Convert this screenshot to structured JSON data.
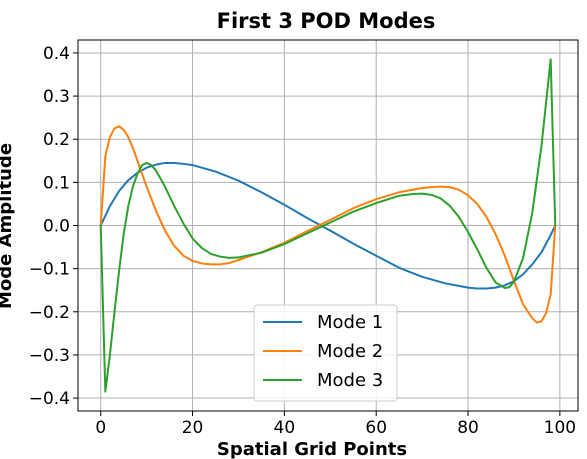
{
  "chart_data": {
    "type": "line",
    "title": "First 3 POD Modes",
    "xlabel": "Spatial Grid Points",
    "ylabel": "Mode Amplitude",
    "xlim": [
      -4.95,
      103.95
    ],
    "ylim": [
      -0.43,
      0.43
    ],
    "xticks": [
      0,
      20,
      40,
      60,
      80,
      100
    ],
    "yticks": [
      -0.4,
      -0.3,
      -0.2,
      -0.1,
      0.0,
      0.1,
      0.2,
      0.3,
      0.4
    ],
    "ytick_labels": [
      "−0.4",
      "−0.3",
      "−0.2",
      "−0.1",
      "0.0",
      "0.1",
      "0.2",
      "0.3",
      "0.4"
    ],
    "grid": true,
    "legend_position": "lower center",
    "series": [
      {
        "name": "Mode 1",
        "color": "#1f77b4",
        "x": [
          0,
          2,
          4,
          6,
          8,
          10,
          12,
          14,
          16,
          18,
          20,
          25,
          30,
          35,
          40,
          45,
          50,
          55,
          60,
          65,
          70,
          75,
          80,
          82,
          84,
          86,
          88,
          90,
          92,
          94,
          96,
          98,
          99
        ],
        "y": [
          0.0,
          0.045,
          0.08,
          0.105,
          0.122,
          0.134,
          0.141,
          0.145,
          0.145,
          0.143,
          0.14,
          0.125,
          0.104,
          0.077,
          0.048,
          0.017,
          -0.012,
          -0.042,
          -0.07,
          -0.098,
          -0.119,
          -0.134,
          -0.144,
          -0.146,
          -0.146,
          -0.144,
          -0.139,
          -0.129,
          -0.113,
          -0.09,
          -0.062,
          -0.022,
          0.0
        ]
      },
      {
        "name": "Mode 2",
        "color": "#ff7f0e",
        "x": [
          0,
          1,
          2,
          3,
          4,
          5,
          6,
          7,
          8,
          10,
          12,
          14,
          16,
          18,
          20,
          22,
          24,
          26,
          28,
          30,
          35,
          40,
          45,
          50,
          55,
          60,
          65,
          70,
          72,
          74,
          76,
          78,
          80,
          82,
          84,
          86,
          88,
          90,
          92,
          94,
          95,
          96,
          97,
          98,
          99
        ],
        "y": [
          0.0,
          0.16,
          0.205,
          0.225,
          0.23,
          0.222,
          0.205,
          0.18,
          0.15,
          0.09,
          0.035,
          -0.012,
          -0.047,
          -0.07,
          -0.082,
          -0.088,
          -0.09,
          -0.09,
          -0.087,
          -0.08,
          -0.062,
          -0.04,
          -0.013,
          0.013,
          0.04,
          0.061,
          0.077,
          0.087,
          0.089,
          0.09,
          0.089,
          0.083,
          0.07,
          0.05,
          0.02,
          -0.02,
          -0.07,
          -0.128,
          -0.183,
          -0.215,
          -0.225,
          -0.222,
          -0.203,
          -0.16,
          0.0
        ]
      },
      {
        "name": "Mode 3",
        "color": "#2ca02c",
        "x": [
          0,
          1,
          2,
          3,
          4,
          5,
          6,
          7,
          8,
          9,
          10,
          11,
          12,
          14,
          16,
          18,
          20,
          22,
          24,
          26,
          28,
          30,
          35,
          40,
          45,
          50,
          55,
          60,
          65,
          68,
          70,
          72,
          74,
          76,
          78,
          80,
          82,
          84,
          86,
          88,
          89,
          90,
          92,
          94,
          96,
          97,
          98,
          99
        ],
        "y": [
          0.0,
          -0.385,
          -0.3,
          -0.2,
          -0.105,
          -0.02,
          0.045,
          0.09,
          0.12,
          0.14,
          0.145,
          0.14,
          0.128,
          0.09,
          0.045,
          0.005,
          -0.03,
          -0.052,
          -0.066,
          -0.072,
          -0.075,
          -0.074,
          -0.063,
          -0.043,
          -0.018,
          0.007,
          0.032,
          0.052,
          0.069,
          0.073,
          0.074,
          0.071,
          0.063,
          0.046,
          0.02,
          -0.015,
          -0.055,
          -0.098,
          -0.132,
          -0.145,
          -0.143,
          -0.13,
          -0.075,
          0.03,
          0.185,
          0.285,
          0.385,
          0.0
        ]
      }
    ]
  }
}
